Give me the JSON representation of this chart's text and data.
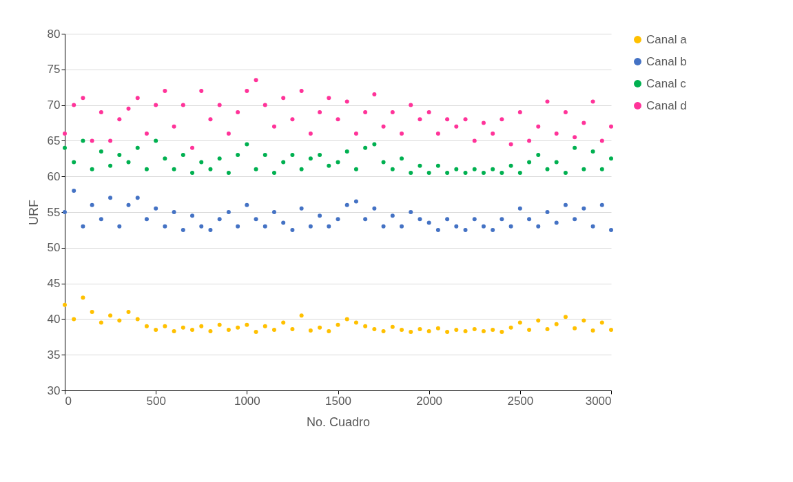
{
  "chart_data": {
    "type": "scatter",
    "xlabel": "No. Cuadro",
    "ylabel": "URF",
    "x": [
      0,
      50,
      100,
      150,
      200,
      250,
      300,
      350,
      400,
      450,
      500,
      550,
      600,
      650,
      700,
      750,
      800,
      850,
      900,
      950,
      1000,
      1050,
      1100,
      1150,
      1200,
      1250,
      1300,
      1350,
      1400,
      1450,
      1500,
      1550,
      1600,
      1650,
      1700,
      1750,
      1800,
      1850,
      1900,
      1950,
      2000,
      2050,
      2100,
      2150,
      2200,
      2250,
      2300,
      2350,
      2400,
      2450,
      2500,
      2550,
      2600,
      2650,
      2700,
      2750,
      2800,
      2850,
      2900,
      2950,
      3000
    ],
    "series": [
      {
        "name": "Canal a",
        "color": "#ffc000",
        "values": [
          42,
          40,
          43,
          41,
          39.5,
          40.5,
          39.8,
          41,
          40,
          39,
          38.5,
          39,
          38.3,
          38.8,
          38.5,
          39,
          38.3,
          39.2,
          38.5,
          38.8,
          39.2,
          38.2,
          39,
          38.5,
          39.5,
          38.6,
          40.5,
          38.4,
          38.8,
          38.3,
          39.2,
          40,
          39.5,
          39,
          38.6,
          38.3,
          38.9,
          38.5,
          38.2,
          38.6,
          38.3,
          38.7,
          38.2,
          38.5,
          38.3,
          38.6,
          38.3,
          38.5,
          38.2,
          38.8,
          39.5,
          38.5,
          39.8,
          38.6,
          39.3,
          40.3,
          38.7,
          39.8,
          38.4,
          39.5,
          38.5
        ]
      },
      {
        "name": "Canal b",
        "color": "#4472c4",
        "values": [
          55,
          58,
          53,
          56,
          54,
          57,
          53,
          56,
          57,
          54,
          55.5,
          53,
          55,
          52.5,
          54.5,
          53,
          52.5,
          54,
          55,
          53,
          56,
          54,
          53,
          55,
          53.5,
          52.5,
          55.5,
          53,
          54.5,
          53,
          54,
          56,
          56.5,
          54,
          55.5,
          53,
          54.5,
          53,
          55,
          54,
          53.5,
          52.5,
          54,
          53,
          52.5,
          54,
          53,
          52.5,
          54,
          53,
          55.5,
          54,
          53,
          55,
          53.5,
          56,
          54,
          55.5,
          53,
          56,
          52.5
        ]
      },
      {
        "name": "Canal c",
        "color": "#00b050",
        "values": [
          64,
          62,
          65,
          61,
          63.5,
          61.5,
          63,
          62,
          64,
          61,
          65,
          62.5,
          61,
          63,
          60.5,
          62,
          61,
          62.5,
          60.5,
          63,
          64.5,
          61,
          63,
          60.5,
          62,
          63,
          61,
          62.5,
          63,
          61.5,
          62,
          63.5,
          61,
          64,
          64.5,
          62,
          61,
          62.5,
          60.5,
          61.5,
          60.5,
          61.5,
          60.5,
          61,
          60.5,
          61,
          60.5,
          61,
          60.5,
          61.5,
          60.5,
          62,
          63,
          61,
          62,
          60.5,
          64,
          61,
          63.5,
          61,
          62.5
        ]
      },
      {
        "name": "Canal d",
        "color": "#ff3399",
        "values": [
          66,
          70,
          71,
          65,
          69,
          65,
          68,
          69.5,
          71,
          66,
          70,
          72,
          67,
          70,
          64,
          72,
          68,
          70,
          66,
          69,
          72,
          73.5,
          70,
          67,
          71,
          68,
          72,
          66,
          69,
          71,
          68,
          70.5,
          66,
          69,
          71.5,
          67,
          69,
          66,
          70,
          68,
          69,
          66,
          68,
          67,
          68,
          65,
          67.5,
          66,
          68,
          64.5,
          69,
          65,
          67,
          70.5,
          66,
          69,
          65.5,
          67.5,
          70.5,
          65,
          67
        ]
      }
    ],
    "xlim": [
      0,
      3000
    ],
    "xticks": [
      0,
      500,
      1000,
      1500,
      2000,
      2500,
      3000
    ],
    "ylim": [
      30,
      80
    ],
    "yticks": [
      30,
      35,
      40,
      45,
      50,
      55,
      60,
      65,
      70,
      75,
      80
    ],
    "grid": "y",
    "legend": "right",
    "marker": "circle"
  }
}
